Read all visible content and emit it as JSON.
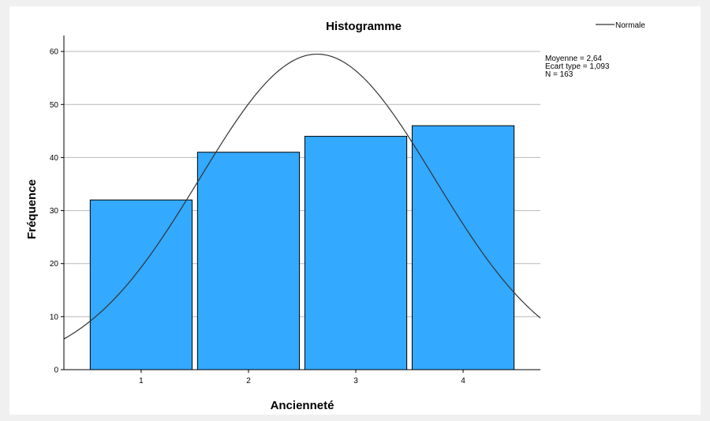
{
  "chart_data": {
    "type": "bar",
    "title": "Histogramme",
    "xlabel": "Ancienneté",
    "ylabel": "Fréquence",
    "categories": [
      "1",
      "2",
      "3",
      "4"
    ],
    "values": [
      32,
      41,
      44,
      46
    ],
    "ylim": [
      0,
      63
    ],
    "yticks": [
      0,
      10,
      20,
      30,
      40,
      50,
      60
    ],
    "grid": true,
    "bar_color": "#33a9ff",
    "curve_color": "#333333",
    "normal_curve": {
      "name": "Normale",
      "mean": 2.64,
      "sd": 1.093,
      "n": 163,
      "bin_width": 1
    },
    "legend": {
      "position": "top-right",
      "entries": [
        "Normale"
      ]
    },
    "stats": {
      "mean_text": "Moyenne = 2,64",
      "sd_text": "Ecart type = 1,093",
      "n_text": "N = 163"
    }
  }
}
